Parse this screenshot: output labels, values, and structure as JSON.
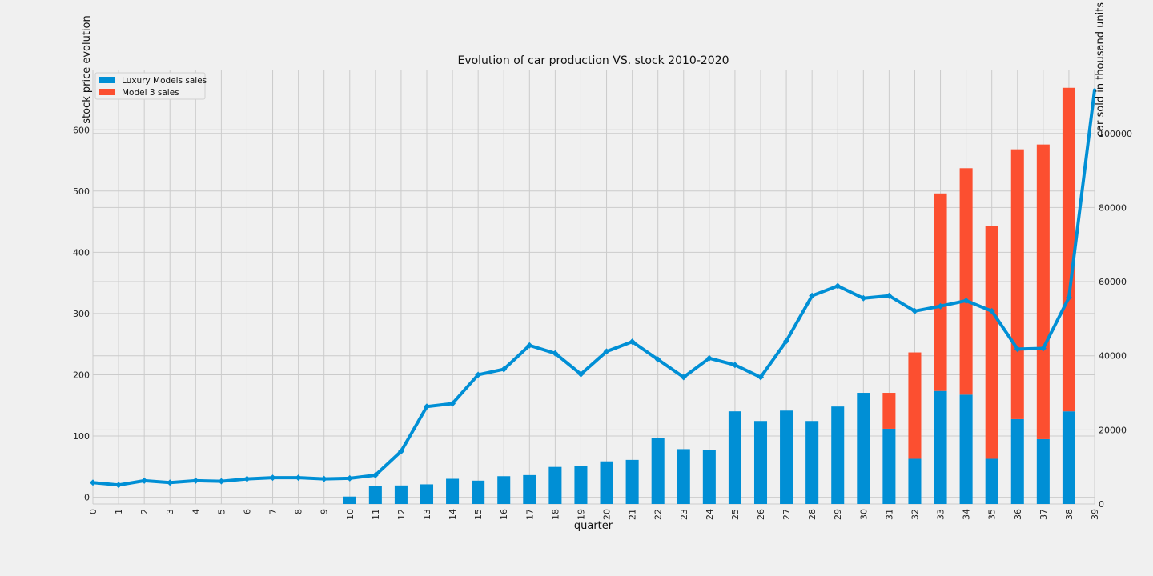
{
  "chart_data": {
    "type": "bar",
    "title": "Evolution of car production VS. stock 2010-2020",
    "xlabel": "quarter",
    "ylabel_left": "stock price evolution",
    "ylabel_right": "car sold in thousand units",
    "grid": true,
    "legend_position": "top-left",
    "categories": [
      "0",
      "1",
      "2",
      "3",
      "4",
      "5",
      "6",
      "7",
      "8",
      "9",
      "10",
      "11",
      "12",
      "13",
      "14",
      "15",
      "16",
      "17",
      "18",
      "19",
      "20",
      "21",
      "22",
      "23",
      "24",
      "25",
      "26",
      "27",
      "28",
      "29",
      "30",
      "31",
      "32",
      "33",
      "34",
      "35",
      "36",
      "37",
      "38",
      "39"
    ],
    "left_axis": {
      "ylim": [
        -11,
        697
      ],
      "ticks": [
        "0",
        "100",
        "200",
        "300",
        "400",
        "500",
        "600"
      ]
    },
    "right_axis": {
      "ylim": [
        0,
        117000
      ],
      "ticks": [
        "0",
        "20000",
        "40000",
        "60000",
        "80000",
        "100000"
      ]
    },
    "series": [
      {
        "name": "Luxury Models sales",
        "kind": "stacked-bar",
        "axis": "right",
        "color": "#008fd5",
        "values": [
          0,
          0,
          0,
          0,
          0,
          0,
          0,
          0,
          0,
          0,
          2000,
          4800,
          5000,
          5300,
          6800,
          6300,
          7500,
          7800,
          10000,
          10200,
          11500,
          11900,
          17800,
          14800,
          14600,
          25000,
          22400,
          25200,
          22400,
          26300,
          30000,
          20300,
          12200,
          30500,
          29500,
          12200,
          22900,
          17500,
          25000,
          0
        ]
      },
      {
        "name": "Model 3 sales",
        "kind": "stacked-bar",
        "axis": "right",
        "color": "#fc4f30",
        "values": [
          0,
          0,
          0,
          0,
          0,
          0,
          0,
          0,
          0,
          0,
          0,
          0,
          0,
          0,
          0,
          0,
          0,
          0,
          0,
          0,
          0,
          0,
          0,
          0,
          0,
          0,
          0,
          0,
          0,
          0,
          0,
          9700,
          28700,
          53300,
          61100,
          62900,
          72800,
          79500,
          87300,
          0
        ]
      },
      {
        "kind": "line",
        "axis": "left",
        "color": "#008fd5",
        "values": [
          24,
          20,
          27,
          24,
          27,
          26,
          30,
          32,
          32,
          30,
          31,
          36,
          75,
          148,
          153,
          200,
          209,
          248,
          235,
          201,
          238,
          254,
          225,
          196,
          227,
          216,
          196,
          255,
          329,
          345,
          325,
          329,
          304,
          312,
          321,
          304,
          242,
          243,
          326,
          665
        ]
      }
    ]
  }
}
